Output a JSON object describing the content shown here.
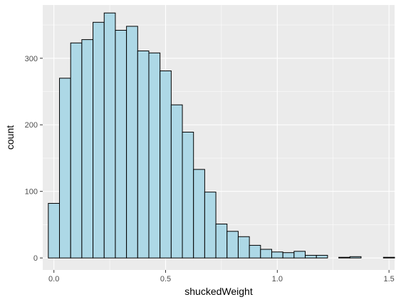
{
  "chart_data": {
    "type": "bar",
    "subtype": "histogram",
    "title": "",
    "xlabel": "shuckedWeight",
    "ylabel": "count",
    "xlim": [
      -0.05,
      1.525
    ],
    "ylim": [
      -18,
      380
    ],
    "x_ticks": [
      0.0,
      0.5,
      1.0,
      1.5
    ],
    "x_tick_labels": [
      "0.0",
      "0.5",
      "1.0",
      "1.5"
    ],
    "y_ticks": [
      0,
      100,
      200,
      300
    ],
    "y_tick_labels": [
      "0",
      "100",
      "200",
      "300"
    ],
    "bin_width": 0.05,
    "bin_centers": [
      0.0,
      0.05,
      0.1,
      0.15,
      0.2,
      0.25,
      0.3,
      0.35,
      0.4,
      0.45,
      0.5,
      0.55,
      0.6,
      0.65,
      0.7,
      0.75,
      0.8,
      0.85,
      0.9,
      0.95,
      1.0,
      1.05,
      1.1,
      1.15,
      1.2,
      1.25,
      1.3,
      1.35,
      1.4,
      1.45,
      1.5
    ],
    "values": [
      82,
      270,
      323,
      328,
      354,
      368,
      342,
      348,
      311,
      308,
      281,
      230,
      189,
      133,
      99,
      51,
      40,
      32,
      19,
      13,
      9,
      8,
      10,
      4,
      4,
      0,
      1,
      2,
      0,
      0,
      1
    ],
    "grid": true,
    "colors": {
      "panel_background": "#ebebeb",
      "grid": "#ffffff",
      "bar_fill": "#add8e6",
      "bar_outline": "#000000"
    }
  }
}
